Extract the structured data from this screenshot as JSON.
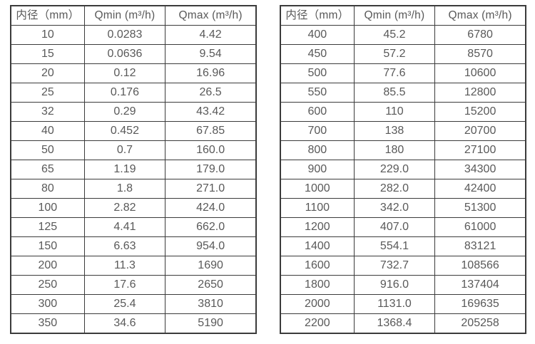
{
  "page": {
    "background": "#ffffff",
    "border_color": "#3b3b3b",
    "text_color": "#595959"
  },
  "tables": [
    {
      "name": "flow-table-small-diameters",
      "headers": [
        "内径（mm）",
        "Qmin (m³/h)",
        "Qmax (m³/h)"
      ],
      "rows": [
        [
          "10",
          "0.0283",
          "4.42"
        ],
        [
          "15",
          "0.0636",
          "9.54"
        ],
        [
          "20",
          "0.12",
          "16.96"
        ],
        [
          "25",
          "0.176",
          "26.5"
        ],
        [
          "32",
          "0.29",
          "43.42"
        ],
        [
          "40",
          "0.452",
          "67.85"
        ],
        [
          "50",
          "0.7",
          "160.0"
        ],
        [
          "65",
          "1.19",
          "179.0"
        ],
        [
          "80",
          "1.8",
          "271.0"
        ],
        [
          "100",
          "2.82",
          "424.0"
        ],
        [
          "125",
          "4.41",
          "662.0"
        ],
        [
          "150",
          "6.63",
          "954.0"
        ],
        [
          "200",
          "11.3",
          "1690"
        ],
        [
          "250",
          "17.6",
          "2650"
        ],
        [
          "300",
          "25.4",
          "3810"
        ],
        [
          "350",
          "34.6",
          "5190"
        ]
      ]
    },
    {
      "name": "flow-table-large-diameters",
      "headers": [
        "内径（mm）",
        "Qmin (m³/h)",
        "Qmax (m³/h)"
      ],
      "rows": [
        [
          "400",
          "45.2",
          "6780"
        ],
        [
          "450",
          "57.2",
          "8570"
        ],
        [
          "500",
          "77.6",
          "10600"
        ],
        [
          "550",
          "85.5",
          "12800"
        ],
        [
          "600",
          "110",
          "15200"
        ],
        [
          "700",
          "138",
          "20700"
        ],
        [
          "800",
          "180",
          "27100"
        ],
        [
          "900",
          "229.0",
          "34300"
        ],
        [
          "1000",
          "282.0",
          "42400"
        ],
        [
          "1100",
          "342.0",
          "51300"
        ],
        [
          "1200",
          "407.0",
          "61000"
        ],
        [
          "1400",
          "554.1",
          "83121"
        ],
        [
          "1600",
          "732.7",
          "108566"
        ],
        [
          "1800",
          "916.0",
          "137404"
        ],
        [
          "2000",
          "1131.0",
          "169635"
        ],
        [
          "2200",
          "1368.4",
          "205258"
        ]
      ]
    }
  ]
}
